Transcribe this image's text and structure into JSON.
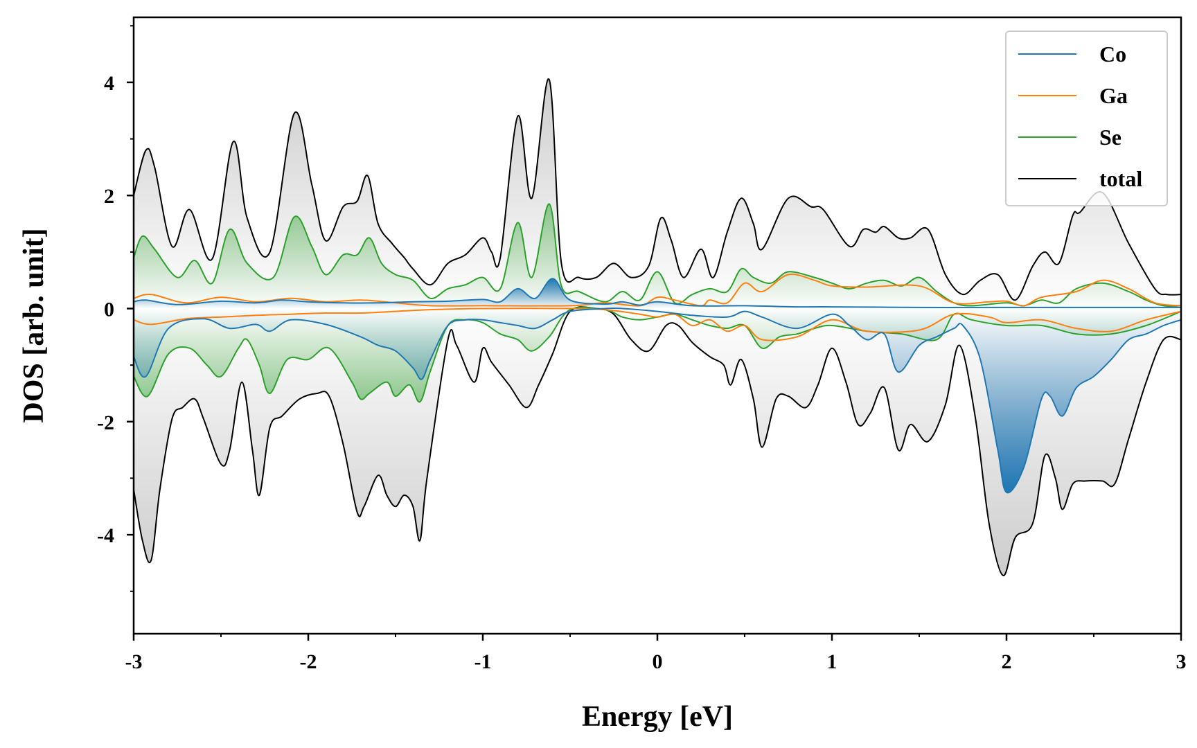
{
  "chart_data": {
    "type": "line",
    "xlabel": "Energy [eV]",
    "ylabel": "DOS [arb. unit]",
    "xlim": [
      -3,
      3
    ],
    "ylim": [
      -5.75,
      5.15
    ],
    "xticks": [
      -3,
      -2,
      -1,
      0,
      1,
      2,
      3
    ],
    "xtick_labels": [
      "-3",
      "-2",
      "-1",
      "0",
      "1",
      "2",
      "3"
    ],
    "yticks": [
      -4,
      -2,
      0,
      2,
      4
    ],
    "ytick_labels": [
      "-4",
      "-2",
      "0",
      "2",
      "4"
    ],
    "grid": false,
    "legend_position": "top-right",
    "series": [
      {
        "name": "Co",
        "color": "#1f77b4",
        "up_x": [
          -3.0,
          -2.93,
          -2.75,
          -2.5,
          -2.3,
          -2.15,
          -2.0,
          -1.8,
          -1.6,
          -1.4,
          -1.2,
          -1.0,
          -0.9,
          -0.8,
          -0.7,
          -0.6,
          -0.5,
          -0.3,
          -0.2,
          -0.1,
          0.0,
          0.2,
          0.5,
          0.8,
          1.0,
          1.5,
          2.0,
          2.5,
          3.0
        ],
        "up_y": [
          0.12,
          0.15,
          0.07,
          0.13,
          0.1,
          0.15,
          0.12,
          0.1,
          0.1,
          0.12,
          0.13,
          0.16,
          0.12,
          0.35,
          0.18,
          0.53,
          0.15,
          0.08,
          0.12,
          0.06,
          0.12,
          0.05,
          0.05,
          0.03,
          0.03,
          0.02,
          0.02,
          0.02,
          0.02
        ],
        "down_x": [
          -3.0,
          -2.93,
          -2.8,
          -2.6,
          -2.45,
          -2.3,
          -2.22,
          -2.1,
          -1.9,
          -1.7,
          -1.6,
          -1.5,
          -1.4,
          -1.35,
          -1.3,
          -1.2,
          -1.1,
          -1.0,
          -0.9,
          -0.8,
          -0.7,
          -0.6,
          -0.5,
          -0.3,
          -0.2,
          0.0,
          0.2,
          0.4,
          0.5,
          0.6,
          0.8,
          1.0,
          1.1,
          1.2,
          1.3,
          1.38,
          1.5,
          1.6,
          1.7,
          1.75,
          1.85,
          1.95,
          2.0,
          2.1,
          2.2,
          2.25,
          2.32,
          2.4,
          2.5,
          2.6,
          2.7,
          2.8,
          2.9,
          3.0
        ],
        "down_y": [
          -0.85,
          -1.2,
          -0.35,
          -0.18,
          -0.35,
          -0.28,
          -0.4,
          -0.2,
          -0.28,
          -0.5,
          -0.65,
          -0.75,
          -1.05,
          -1.25,
          -0.9,
          -0.3,
          -0.2,
          -0.2,
          -0.25,
          -0.3,
          -0.35,
          -0.2,
          -0.05,
          0.0,
          0.0,
          -0.05,
          -0.12,
          -0.15,
          -0.05,
          -0.15,
          -0.35,
          -0.1,
          -0.3,
          -0.55,
          -0.45,
          -1.12,
          -0.65,
          -0.5,
          -0.35,
          -0.3,
          -0.9,
          -2.5,
          -3.25,
          -2.8,
          -1.6,
          -1.55,
          -1.9,
          -1.4,
          -1.2,
          -0.9,
          -0.55,
          -0.45,
          -0.3,
          -0.2
        ]
      },
      {
        "name": "Ga",
        "color": "#ff7f0e",
        "up_x": [
          -3.0,
          -2.9,
          -2.7,
          -2.5,
          -2.3,
          -2.1,
          -1.9,
          -1.7,
          -1.5,
          -1.3,
          -1.0,
          -0.5,
          -0.3,
          -0.1,
          0.0,
          0.1,
          0.25,
          0.3,
          0.4,
          0.5,
          0.6,
          0.75,
          0.9,
          1.0,
          1.2,
          1.5,
          1.7,
          1.9,
          2.0,
          2.1,
          2.2,
          2.4,
          2.55,
          2.7,
          2.85,
          3.0
        ],
        "up_y": [
          0.18,
          0.25,
          0.1,
          0.2,
          0.12,
          0.18,
          0.12,
          0.15,
          0.1,
          0.05,
          0.05,
          0.05,
          0.1,
          0.05,
          0.2,
          0.15,
          0.05,
          0.15,
          0.1,
          0.45,
          0.3,
          0.6,
          0.5,
          0.4,
          0.38,
          0.4,
          0.1,
          0.12,
          0.13,
          0.05,
          0.2,
          0.3,
          0.5,
          0.35,
          0.1,
          0.05
        ],
        "down_x": [
          -3.0,
          -2.9,
          -2.7,
          -2.5,
          -2.3,
          -2.1,
          -1.9,
          -1.7,
          -1.5,
          -1.3,
          -1.0,
          -0.5,
          -0.3,
          -0.1,
          0.0,
          0.1,
          0.2,
          0.3,
          0.4,
          0.5,
          0.6,
          0.8,
          1.0,
          1.2,
          1.5,
          1.7,
          1.9,
          2.0,
          2.2,
          2.4,
          2.6,
          2.8,
          3.0
        ],
        "down_y": [
          -0.2,
          -0.28,
          -0.18,
          -0.15,
          -0.12,
          -0.1,
          -0.08,
          -0.08,
          -0.05,
          -0.02,
          0.0,
          0.0,
          -0.02,
          -0.1,
          -0.15,
          -0.1,
          -0.3,
          -0.2,
          -0.4,
          -0.3,
          -0.55,
          -0.5,
          -0.2,
          -0.4,
          -0.38,
          -0.1,
          -0.15,
          -0.25,
          -0.2,
          -0.35,
          -0.4,
          -0.2,
          -0.05
        ]
      },
      {
        "name": "Se",
        "color": "#2ca02c",
        "up_x": [
          -3.0,
          -2.95,
          -2.88,
          -2.75,
          -2.65,
          -2.55,
          -2.45,
          -2.35,
          -2.2,
          -2.08,
          -1.98,
          -1.9,
          -1.8,
          -1.72,
          -1.65,
          -1.58,
          -1.5,
          -1.4,
          -1.3,
          -1.2,
          -1.1,
          -1.0,
          -0.9,
          -0.8,
          -0.72,
          -0.62,
          -0.55,
          -0.45,
          -0.3,
          -0.2,
          -0.1,
          0.0,
          0.1,
          0.2,
          0.3,
          0.4,
          0.48,
          0.55,
          0.65,
          0.75,
          0.9,
          1.0,
          1.1,
          1.2,
          1.3,
          1.4,
          1.5,
          1.6,
          1.7,
          1.8,
          2.0,
          2.1,
          2.2,
          2.3,
          2.4,
          2.55,
          2.7,
          2.8,
          2.9,
          3.0
        ],
        "up_y": [
          0.9,
          1.28,
          1.05,
          0.55,
          0.85,
          0.45,
          1.4,
          0.8,
          0.55,
          1.62,
          1.1,
          0.6,
          0.95,
          0.95,
          1.25,
          0.8,
          0.6,
          0.5,
          0.18,
          0.35,
          0.42,
          0.55,
          0.35,
          1.52,
          0.55,
          1.85,
          0.4,
          0.3,
          0.12,
          0.3,
          0.15,
          0.65,
          0.1,
          0.25,
          0.35,
          0.3,
          0.7,
          0.55,
          0.45,
          0.65,
          0.55,
          0.45,
          0.35,
          0.45,
          0.5,
          0.4,
          0.55,
          0.3,
          0.1,
          0.05,
          0.1,
          0.05,
          0.15,
          0.1,
          0.35,
          0.45,
          0.3,
          0.15,
          0.05,
          0.05
        ],
        "down_x": [
          -3.0,
          -2.92,
          -2.8,
          -2.68,
          -2.58,
          -2.5,
          -2.4,
          -2.35,
          -2.28,
          -2.22,
          -2.12,
          -2.0,
          -1.88,
          -1.75,
          -1.7,
          -1.65,
          -1.55,
          -1.5,
          -1.42,
          -1.36,
          -1.3,
          -1.2,
          -1.1,
          -1.0,
          -0.9,
          -0.8,
          -0.72,
          -0.62,
          -0.5,
          -0.3,
          -0.2,
          -0.1,
          0.0,
          0.1,
          0.2,
          0.3,
          0.4,
          0.5,
          0.6,
          0.7,
          0.8,
          0.9,
          1.0,
          1.2,
          1.4,
          1.6,
          1.7,
          1.8,
          2.0,
          2.2,
          2.4,
          2.6,
          2.8,
          3.0
        ],
        "down_y": [
          -1.2,
          -1.55,
          -0.8,
          -0.7,
          -1.0,
          -1.2,
          -0.7,
          -0.55,
          -1.0,
          -1.5,
          -0.9,
          -0.9,
          -0.7,
          -1.3,
          -1.6,
          -1.5,
          -1.3,
          -1.55,
          -1.35,
          -1.65,
          -1.1,
          -0.3,
          -0.2,
          -0.25,
          -0.45,
          -0.55,
          -0.75,
          -0.5,
          -0.02,
          -0.02,
          -0.15,
          -0.2,
          -0.15,
          -0.1,
          -0.2,
          -0.3,
          -0.35,
          -0.3,
          -0.7,
          -0.5,
          -0.45,
          -0.35,
          -0.3,
          -0.4,
          -0.45,
          -0.55,
          -0.1,
          -0.2,
          -0.3,
          -0.3,
          -0.45,
          -0.45,
          -0.3,
          -0.05
        ]
      },
      {
        "name": "total",
        "color": "#000000",
        "up_x": [
          -3.0,
          -2.93,
          -2.88,
          -2.78,
          -2.68,
          -2.55,
          -2.43,
          -2.35,
          -2.22,
          -2.08,
          -1.98,
          -1.9,
          -1.8,
          -1.72,
          -1.66,
          -1.6,
          -1.52,
          -1.45,
          -1.4,
          -1.3,
          -1.2,
          -1.1,
          -1.0,
          -0.95,
          -0.9,
          -0.8,
          -0.72,
          -0.62,
          -0.55,
          -0.45,
          -0.35,
          -0.25,
          -0.15,
          -0.05,
          0.02,
          0.08,
          0.15,
          0.25,
          0.32,
          0.4,
          0.48,
          0.55,
          0.6,
          0.75,
          0.88,
          0.95,
          1.1,
          1.18,
          1.25,
          1.3,
          1.38,
          1.45,
          1.55,
          1.65,
          1.75,
          1.85,
          1.95,
          2.05,
          2.15,
          2.22,
          2.3,
          2.38,
          2.42,
          2.55,
          2.7,
          2.85,
          2.92,
          3.0
        ],
        "up_y": [
          2.0,
          2.8,
          2.5,
          1.1,
          1.75,
          0.88,
          2.95,
          1.6,
          1.0,
          3.45,
          2.2,
          1.2,
          1.8,
          1.9,
          2.35,
          1.5,
          1.15,
          0.9,
          0.7,
          0.42,
          0.8,
          0.95,
          1.25,
          1.0,
          0.9,
          3.4,
          1.95,
          4.05,
          0.8,
          0.55,
          0.55,
          0.8,
          0.55,
          0.75,
          1.6,
          1.2,
          0.55,
          1.05,
          0.55,
          1.35,
          1.95,
          1.5,
          1.05,
          1.95,
          1.8,
          1.75,
          1.1,
          1.4,
          1.35,
          1.45,
          1.25,
          1.25,
          1.4,
          0.6,
          0.25,
          0.5,
          0.6,
          0.15,
          0.75,
          1.0,
          0.8,
          1.65,
          1.7,
          2.05,
          1.15,
          0.35,
          0.25,
          0.25
        ],
        "down_x": [
          -3.0,
          -2.95,
          -2.9,
          -2.85,
          -2.78,
          -2.72,
          -2.65,
          -2.6,
          -2.5,
          -2.45,
          -2.38,
          -2.32,
          -2.28,
          -2.22,
          -2.15,
          -2.05,
          -1.95,
          -1.88,
          -1.8,
          -1.72,
          -1.68,
          -1.6,
          -1.55,
          -1.5,
          -1.45,
          -1.4,
          -1.36,
          -1.32,
          -1.2,
          -1.15,
          -1.05,
          -1.0,
          -0.95,
          -0.85,
          -0.75,
          -0.68,
          -0.6,
          -0.5,
          -0.35,
          -0.25,
          -0.15,
          -0.05,
          0.05,
          0.12,
          0.2,
          0.3,
          0.38,
          0.42,
          0.48,
          0.55,
          0.6,
          0.68,
          0.75,
          0.85,
          0.92,
          1.0,
          1.08,
          1.15,
          1.22,
          1.3,
          1.38,
          1.45,
          1.55,
          1.65,
          1.73,
          1.82,
          1.9,
          1.98,
          2.05,
          2.15,
          2.22,
          2.28,
          2.32,
          2.38,
          2.45,
          2.55,
          2.62,
          2.7,
          2.8,
          2.9,
          3.0
        ],
        "down_y": [
          -3.2,
          -4.1,
          -4.45,
          -3.2,
          -1.95,
          -1.75,
          -1.6,
          -1.95,
          -2.75,
          -2.5,
          -1.3,
          -2.5,
          -3.3,
          -2.1,
          -1.9,
          -1.6,
          -1.5,
          -1.55,
          -2.4,
          -3.6,
          -3.5,
          -2.95,
          -3.3,
          -3.5,
          -3.3,
          -3.5,
          -4.1,
          -3.0,
          -0.55,
          -0.65,
          -1.3,
          -0.7,
          -0.95,
          -1.35,
          -1.75,
          -1.35,
          -0.8,
          -0.05,
          0.0,
          -0.1,
          -0.55,
          -0.75,
          -0.3,
          -0.3,
          -0.6,
          -0.85,
          -1.0,
          -1.35,
          -0.9,
          -1.6,
          -2.45,
          -1.6,
          -1.55,
          -1.75,
          -1.35,
          -0.7,
          -1.3,
          -2.05,
          -1.85,
          -1.4,
          -2.5,
          -2.05,
          -2.35,
          -1.7,
          -0.65,
          -1.9,
          -3.8,
          -4.72,
          -4.05,
          -3.8,
          -2.6,
          -3.0,
          -3.55,
          -3.1,
          -3.05,
          -3.05,
          -3.1,
          -2.3,
          -1.3,
          -0.55,
          -0.55
        ]
      }
    ]
  }
}
